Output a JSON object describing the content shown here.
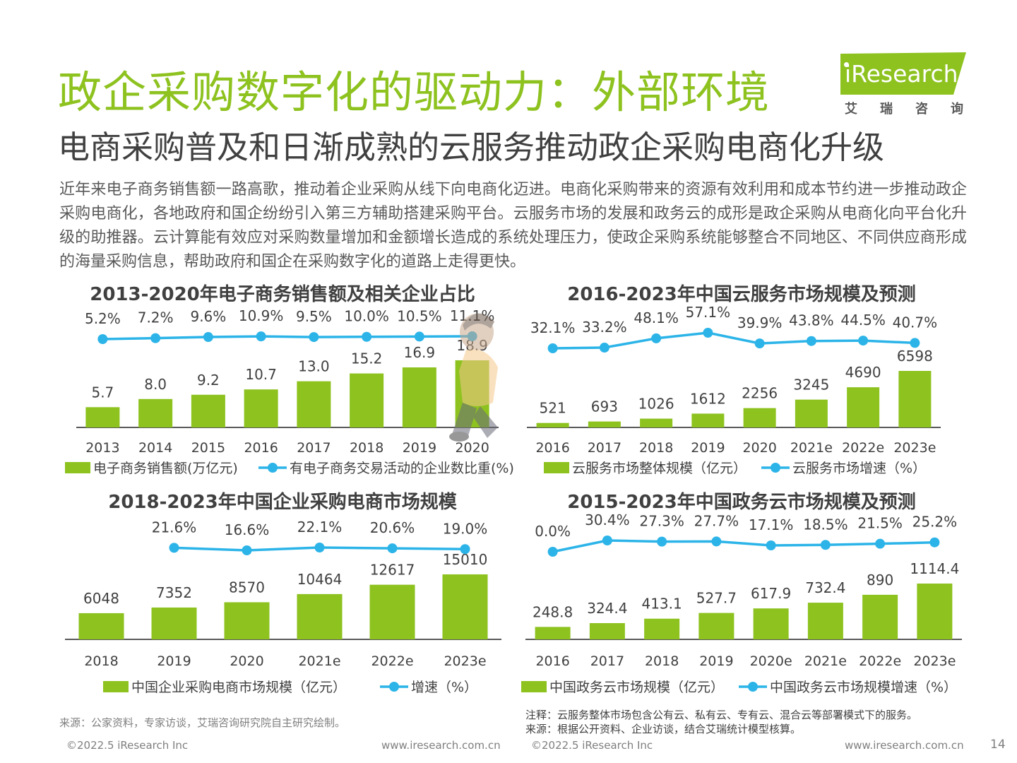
{
  "page": {
    "title": "政企采购数字化的驱动力：外部环境",
    "subtitle": "电商采购普及和日渐成熟的云服务推动政企采购电商化升级",
    "intro": "近年来电子商务销售额一路高歌，推动着企业采购从线下向电商化迈进。电商化采购带来的资源有效利用和成本节约进一步推动政企采购电商化，各地政府和国企纷纷引入第三方辅助搭建采购平台。云服务市场的发展和政务云的成形是政企采购从电商化向平台化升级的助推器。云计算能有效应对采购数量增加和金额增长造成的系统处理压力，使政企采购系统能够整合不同地区、不同供应商形成的海量采购信息，帮助政府和国企在采购数字化的道路上走得更快。",
    "logo": {
      "text": "iResearch",
      "cn": "艾瑞咨询"
    },
    "page_number": "14",
    "colors": {
      "accent_green": "#8dc21f",
      "line_blue": "#2cb4e8",
      "axis": "#595959"
    }
  },
  "footer": {
    "left_source": "来源：公家资料，专家访谈，艾瑞咨询研究院自主研究绘制。",
    "right_note": "注释：云服务整体市场包含公有云、私有云、专有云、混合云等部署模式下的服务。",
    "right_source": "来源：根据公开资料、企业访谈，结合艾瑞统计模型核算。",
    "copyright_left": "©2022.5 iResearch Inc",
    "url_left": "www.iresearch.com.cn",
    "copyright_right": "©2022.5 iResearch Inc",
    "url_right": "www.iresearch.com.cn"
  },
  "chart_data": [
    {
      "type": "bar",
      "title": "2013-2020年电子商务销售额及相关企业占比",
      "categories": [
        "2013",
        "2014",
        "2015",
        "2016",
        "2017",
        "2018",
        "2019",
        "2020"
      ],
      "series": [
        {
          "name": "电子商务销售额(万亿元)",
          "kind": "bar",
          "values": [
            5.7,
            8.0,
            9.2,
            10.7,
            13.0,
            15.2,
            16.9,
            18.9
          ],
          "labels": [
            "5.7",
            "8.0",
            "9.2",
            "10.7",
            "13.0",
            "15.2",
            "16.9",
            "18.9"
          ]
        },
        {
          "name": "有电子商务交易活动的企业数比重(%)",
          "kind": "line",
          "values": [
            5.2,
            7.2,
            9.6,
            10.9,
            9.5,
            10.0,
            10.5,
            11.1
          ],
          "labels": [
            "5.2%",
            "7.2%",
            "9.6%",
            "10.9%",
            "9.5%",
            "10.0%",
            "10.5%",
            "11.1%"
          ]
        }
      ]
    },
    {
      "type": "bar",
      "title": "2016-2023年中国云服务市场规模及预测",
      "categories": [
        "2016",
        "2017",
        "2018",
        "2019",
        "2020",
        "2021e",
        "2022e",
        "2023e"
      ],
      "series": [
        {
          "name": "云服务市场整体规模（亿元）",
          "kind": "bar",
          "values": [
            521,
            693,
            1026,
            1612,
            2256,
            3245,
            4690,
            6598
          ],
          "labels": [
            "521",
            "693",
            "1026",
            "1612",
            "2256",
            "3245",
            "4690",
            "6598"
          ]
        },
        {
          "name": "云服务市场增速（%）",
          "kind": "line",
          "values": [
            32.1,
            33.2,
            48.1,
            57.1,
            39.9,
            43.8,
            44.5,
            40.7
          ],
          "labels": [
            "32.1%",
            "33.2%",
            "48.1%",
            "57.1%",
            "39.9%",
            "43.8%",
            "44.5%",
            "40.7%"
          ]
        }
      ]
    },
    {
      "type": "bar",
      "title": "2018-2023年中国企业采购电商市场规模",
      "categories": [
        "2018",
        "2019",
        "2020",
        "2021e",
        "2022e",
        "2023e"
      ],
      "series": [
        {
          "name": "中国企业采购电商市场规模（亿元）",
          "kind": "bar",
          "values": [
            6048,
            7352,
            8570,
            10464,
            12617,
            15010
          ],
          "labels": [
            "6048",
            "7352",
            "8570",
            "10464",
            "12617",
            "15010"
          ]
        },
        {
          "name": "增速（%）",
          "kind": "line",
          "values": [
            null,
            21.6,
            16.6,
            22.1,
            20.6,
            19.0
          ],
          "labels": [
            "",
            "21.6%",
            "16.6%",
            "22.1%",
            "20.6%",
            "19.0%"
          ]
        }
      ]
    },
    {
      "type": "bar",
      "title": "2015-2023年中国政务云市场规模及预测",
      "categories": [
        "2016",
        "2017",
        "2018",
        "2019",
        "2020e",
        "2021e",
        "2022e",
        "2023e"
      ],
      "series": [
        {
          "name": "中国政务云市场规模（亿元）",
          "kind": "bar",
          "values": [
            248.8,
            324.4,
            413.1,
            527.7,
            617.9,
            732.4,
            890,
            1114.4
          ],
          "labels": [
            "248.8",
            "324.4",
            "413.1",
            "527.7",
            "617.9",
            "732.4",
            "890",
            "1114.4"
          ]
        },
        {
          "name": "中国政务云市场规模增速（%）",
          "kind": "line",
          "values": [
            0.0,
            30.4,
            27.3,
            27.7,
            17.1,
            18.5,
            21.5,
            25.2
          ],
          "labels": [
            "0.0%",
            "30.4%",
            "27.3%",
            "27.7%",
            "17.1%",
            "18.5%",
            "21.5%",
            "25.2%"
          ]
        }
      ]
    }
  ]
}
